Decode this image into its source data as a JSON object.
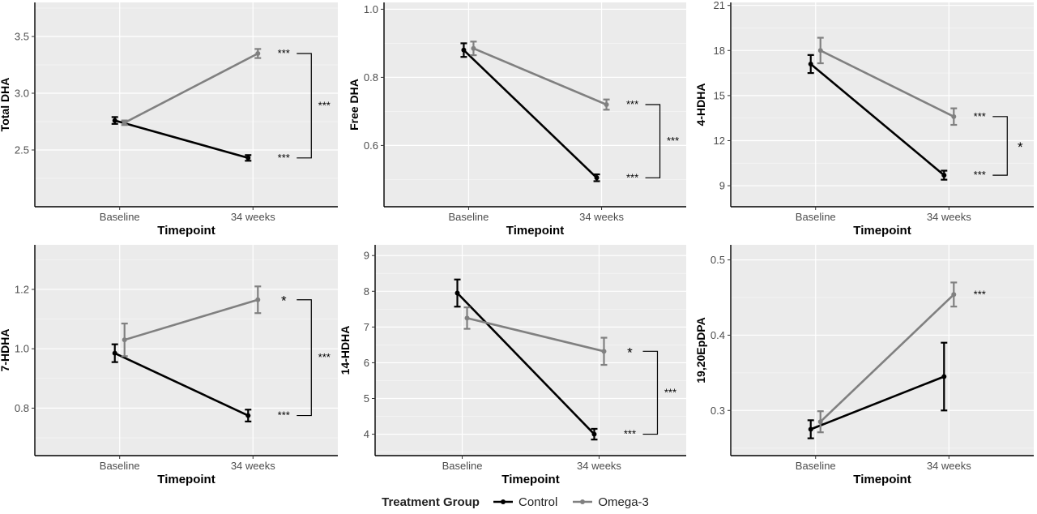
{
  "legend": {
    "title": "Treatment Group",
    "items": [
      {
        "name": "Control",
        "color": "#000000"
      },
      {
        "name": "Omega-3",
        "color": "#808080"
      }
    ]
  },
  "chart_data": [
    {
      "type": "line",
      "title": "",
      "xlabel": "Timepoint",
      "ylabel": "Total DHA",
      "categories": [
        "Baseline",
        "34 weeks"
      ],
      "ylim": [
        2.0,
        3.8
      ],
      "yticks": [
        "2.5",
        "3.0",
        "3.5"
      ],
      "grid": true,
      "series": [
        {
          "name": "Control",
          "values": [
            2.76,
            2.43
          ],
          "err": [
            0.03,
            0.025
          ]
        },
        {
          "name": "Omega-3",
          "values": [
            2.74,
            3.35
          ],
          "err": [
            0.02,
            0.04
          ]
        }
      ],
      "annotations": {
        "point_marks": [
          "***",
          "***"
        ],
        "bracket": "***"
      }
    },
    {
      "type": "line",
      "title": "",
      "xlabel": "Timepoint",
      "ylabel": "Free DHA",
      "categories": [
        "Baseline",
        "34 weeks"
      ],
      "ylim": [
        0.42,
        1.02
      ],
      "yticks": [
        "0.6",
        "0.8",
        "1.0"
      ],
      "grid": true,
      "series": [
        {
          "name": "Control",
          "values": [
            0.88,
            0.505
          ],
          "err": [
            0.02,
            0.01
          ]
        },
        {
          "name": "Omega-3",
          "values": [
            0.885,
            0.72
          ],
          "err": [
            0.02,
            0.015
          ]
        }
      ],
      "annotations": {
        "point_marks": [
          "***",
          "***"
        ],
        "bracket": "***"
      }
    },
    {
      "type": "line",
      "title": "",
      "xlabel": "Timepoint",
      "ylabel": "4-HDHA",
      "categories": [
        "Baseline",
        "34 weeks"
      ],
      "ylim": [
        7.6,
        21.2
      ],
      "yticks": [
        "9",
        "12",
        "15",
        "18",
        "21"
      ],
      "grid": true,
      "series": [
        {
          "name": "Control",
          "values": [
            17.1,
            9.7
          ],
          "err": [
            0.6,
            0.3
          ]
        },
        {
          "name": "Omega-3",
          "values": [
            18.0,
            13.6
          ],
          "err": [
            0.85,
            0.55
          ]
        }
      ],
      "annotations": {
        "point_marks": [
          "***",
          "***"
        ],
        "bracket": "*"
      }
    },
    {
      "type": "line",
      "title": "",
      "xlabel": "Timepoint",
      "ylabel": "7-HDHA",
      "categories": [
        "Baseline",
        "34 weeks"
      ],
      "ylim": [
        0.64,
        1.35
      ],
      "yticks": [
        "0.8",
        "1.0",
        "1.2"
      ],
      "grid": true,
      "series": [
        {
          "name": "Control",
          "values": [
            0.985,
            0.775
          ],
          "err": [
            0.03,
            0.02
          ]
        },
        {
          "name": "Omega-3",
          "values": [
            1.03,
            1.165
          ],
          "err": [
            0.055,
            0.045
          ]
        }
      ],
      "annotations": {
        "point_marks": [
          "*",
          "***"
        ],
        "bracket": "***"
      }
    },
    {
      "type": "line",
      "title": "",
      "xlabel": "Timepoint",
      "ylabel": "14-HDHA",
      "categories": [
        "Baseline",
        "34 weeks"
      ],
      "ylim": [
        3.4,
        9.3
      ],
      "yticks": [
        "4",
        "5",
        "6",
        "7",
        "8",
        "9"
      ],
      "grid": true,
      "series": [
        {
          "name": "Control",
          "values": [
            7.95,
            4.0
          ],
          "err": [
            0.38,
            0.15
          ]
        },
        {
          "name": "Omega-3",
          "values": [
            7.25,
            6.32
          ],
          "err": [
            0.3,
            0.38
          ]
        }
      ],
      "annotations": {
        "point_marks": [
          "*",
          "***"
        ],
        "bracket": "***"
      }
    },
    {
      "type": "line",
      "title": "",
      "xlabel": "Timepoint",
      "ylabel": "19,20EpDPA",
      "categories": [
        "Baseline",
        "34 weeks"
      ],
      "ylim": [
        0.24,
        0.52
      ],
      "yticks": [
        "0.3",
        "0.4",
        "0.5"
      ],
      "grid": true,
      "series": [
        {
          "name": "Control",
          "values": [
            0.275,
            0.345
          ],
          "err": [
            0.012,
            0.045
          ]
        },
        {
          "name": "Omega-3",
          "values": [
            0.285,
            0.454
          ],
          "err": [
            0.014,
            0.016
          ]
        }
      ],
      "annotations": {
        "point_marks": [
          "***"
        ],
        "bracket": ""
      }
    }
  ]
}
